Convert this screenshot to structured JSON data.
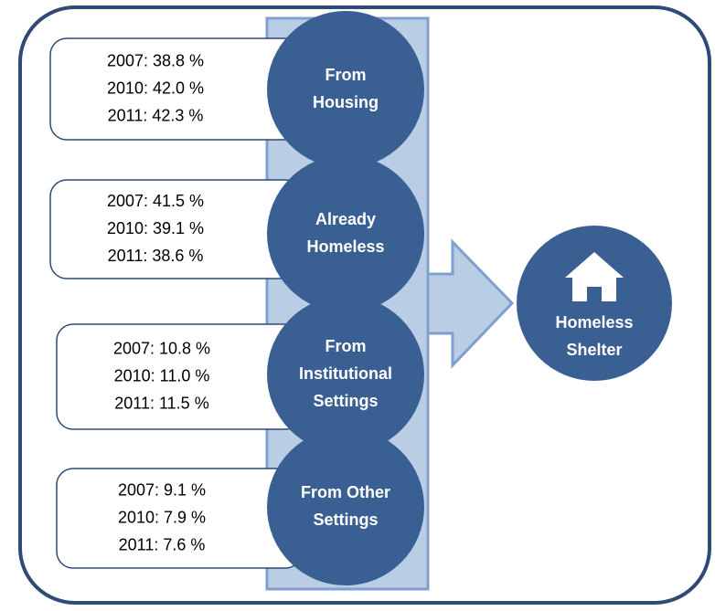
{
  "sources": [
    {
      "label": [
        "From",
        "Housing"
      ],
      "stats": [
        "2007: 38.8 %",
        "2010: 42.0 %",
        "2011: 42.3 %"
      ]
    },
    {
      "label": [
        "Already",
        "Homeless"
      ],
      "stats": [
        "2007: 41.5 %",
        "2010: 39.1 %",
        "2011: 38.6 %"
      ]
    },
    {
      "label": [
        "From",
        "Institutional",
        "Settings"
      ],
      "stats": [
        "2007: 10.8 %",
        "2010: 11.0 %",
        "2011: 11.5 %"
      ]
    },
    {
      "label": [
        "From Other",
        "Settings"
      ],
      "stats": [
        "2007: 9.1 %",
        "2010: 7.9 %",
        "2011: 7.6 %"
      ]
    }
  ],
  "target": {
    "label": [
      "Homeless",
      "Shelter"
    ]
  }
}
